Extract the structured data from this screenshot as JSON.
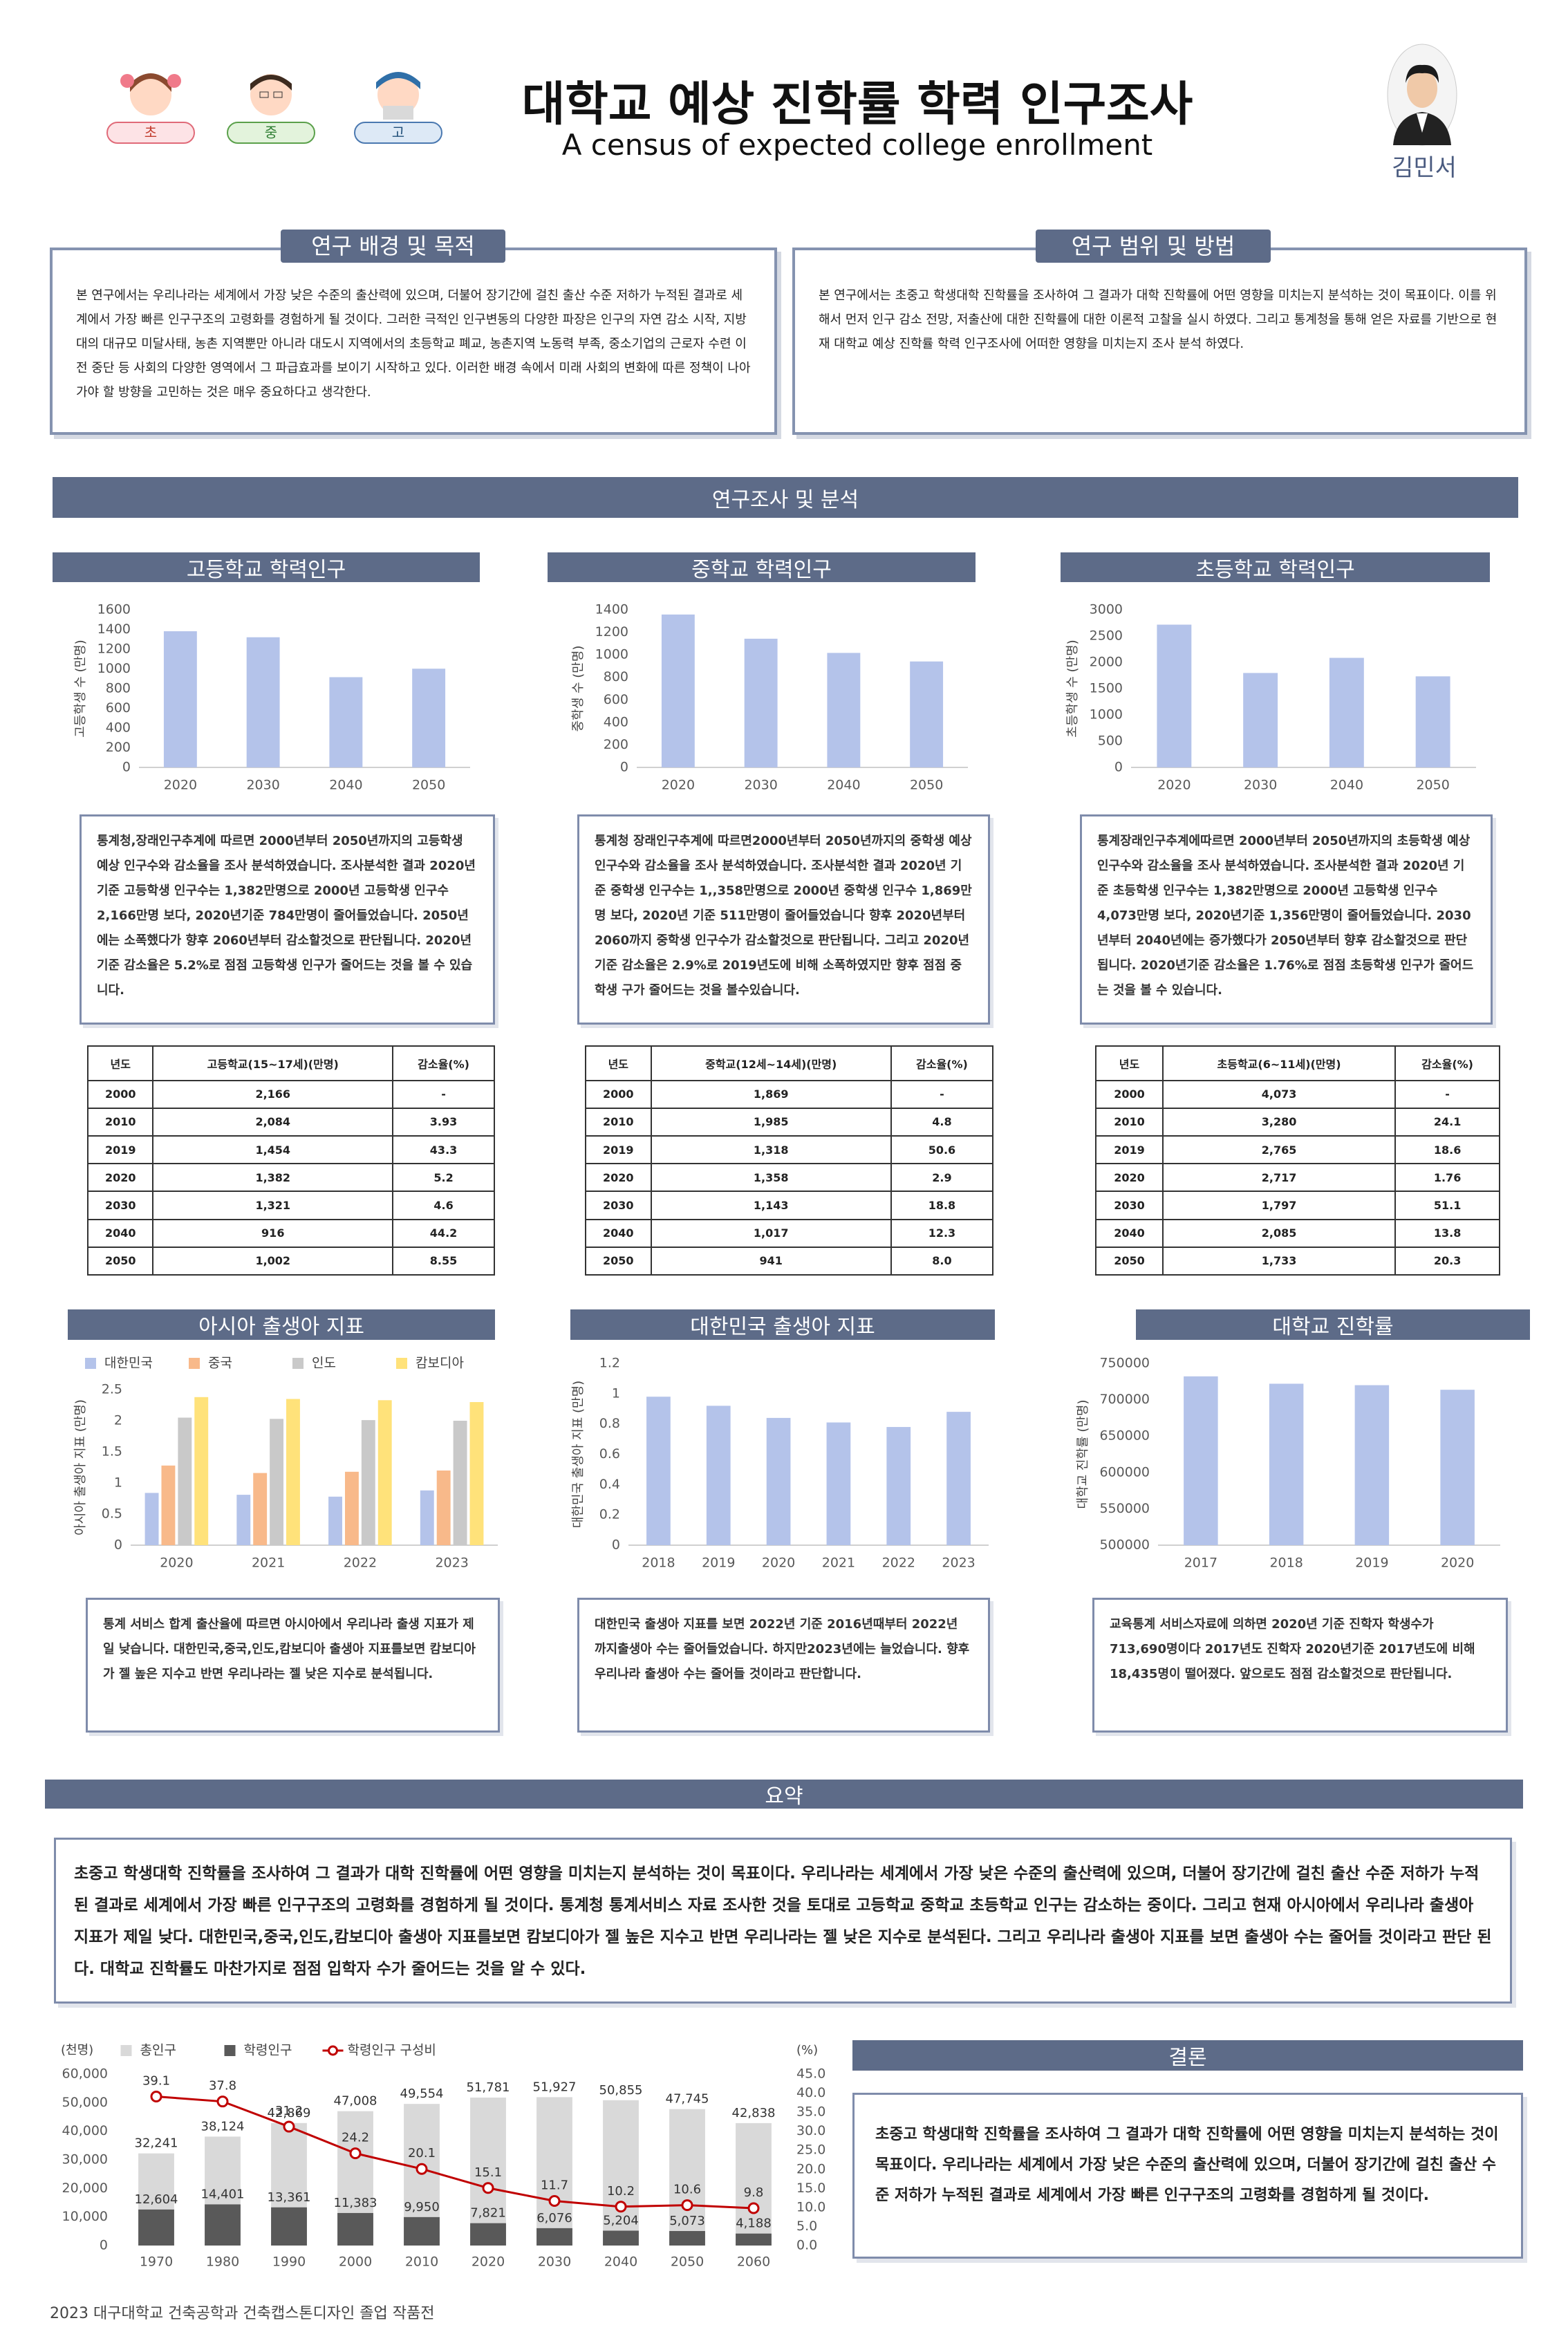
{
  "header": {
    "title": "대학교 예상 진학률 학력 인구조사",
    "subtitle": "A census of expected college enrollment",
    "author": "김민서",
    "icons": [
      "초",
      "중",
      "고"
    ]
  },
  "intro": [
    {
      "heading": "연구 배경 및 목적",
      "text": "본 연구에서는 우리나라는 세계에서 가장 낮은 수준의 출산력에 있으며, 더불어 장기간에 걸친 출산 수준 저하가 누적된 결과로 세계에서 가장 빠른 인구구조의 고령화를 경험하게 될 것이다. 그러한 극적인 인구변동의 다양한 파장은 인구의 자연 감소 시작, 지방대의 대규모 미달사태, 농촌 지역뿐만 아니라 대도시 지역에서의 초등학교 폐교, 농촌지역 노동력 부족, 중소기업의 근로자 수련 이전 중단 등 사회의 다양한 영역에서 그 파급효과를 보이기 시작하고 있다. 이러한 배경 속에서 미래 사회의 변화에 따른 정책이 나아가야 할 방향을 고민하는 것은 매우 중요하다고 생각한다."
    },
    {
      "heading": "연구 범위 및 방법",
      "text": "본 연구에서는 초중고 학생대학 진학률을 조사하여 그 결과가 대학 진학률에 어떤 영향을 미치는지 분석하는 것이 목표이다. 이를 위해서 먼저 인구 감소 전망, 저출산에 대한 진학률에 대한 이론적 고찰을 실시 하였다. 그리고 통계청을 통해 얻은 자료를 기반으로 현재 대학교 예상 진학률 학력 인구조사에 어떠한 영향을 미치는지 조사 분석 하였다."
    }
  ],
  "analysis_banner": "연구조사 및 분석",
  "panels": [
    {
      "heading": "고등학교 학력인구",
      "text": "통계청,장래인구추계에 따르면 2000년부터 2050년까지의 고등학생 예상 인구수와 감소율을 조사 분석하였습니다. 조사분석한 결과 2020년 기준 고등학생 인구수는 1,382만명으로 2000년 고등학생 인구수 2,166만명 보다, 2020년기준 784만명이 줄어들었습니다. 2050년에는 소폭했다가 향후 2060년부터 감소할것으로 판단됩니다. 2020년기준 감소율은 5.2%로 점점 고등학생 인구가 줄어드는 것을 볼 수 있습니다.",
      "table": {
        "header": [
          "년도",
          "고등학교(15~17세)(만명)",
          "감소율(%)"
        ],
        "rows": [
          [
            "2000",
            "2,166",
            "-"
          ],
          [
            "2010",
            "2,084",
            "3.93"
          ],
          [
            "2019",
            "1,454",
            "43.3"
          ],
          [
            "2020",
            "1,382",
            "5.2"
          ],
          [
            "2030",
            "1,321",
            "4.6"
          ],
          [
            "2040",
            "916",
            "44.2"
          ],
          [
            "2050",
            "1,002",
            "8.55"
          ]
        ]
      }
    },
    {
      "heading": "중학교 학력인구",
      "text": "통계청 장래인구추계에 따르면2000년부터 2050년까지의 중학생 예상 인구수와 감소율을 조사 분석하였습니다. 조사분석한 결과 2020년 기준 중학생 인구수는 1,,358만명으로 2000년 중학생 인구수 1,869만명 보다, 2020년 기준 511만명이 줄어들었습니다 향후 2020년부터 2060까지 중학생 인구수가 감소할것으로 판단됩니다. 그리고 2020년기준 감소율은 2.9%로 2019년도에 비해 소폭하였지만 향후 점점 중학생 구가 줄어드는 것을 볼수있습니다.",
      "table": {
        "header": [
          "년도",
          "중학교(12세~14세)(만명)",
          "감소율(%)"
        ],
        "rows": [
          [
            "2000",
            "1,869",
            "-"
          ],
          [
            "2010",
            "1,985",
            "4.8"
          ],
          [
            "2019",
            "1,318",
            "50.6"
          ],
          [
            "2020",
            "1,358",
            "2.9"
          ],
          [
            "2030",
            "1,143",
            "18.8"
          ],
          [
            "2040",
            "1,017",
            "12.3"
          ],
          [
            "2050",
            "941",
            "8.0"
          ]
        ]
      }
    },
    {
      "heading": "초등학교 학력인구",
      "text": "통계장래인구추계에따르면 2000년부터 2050년까지의 초등학생 예상 인구수와 감소율을 조사 분석하였습니다. 조사분석한 결과 2020년 기준 초등학생 인구수는 1,382만명으로 2000년 고등학생 인구수 4,073만명 보다, 2020년기준 1,356만명이 줄어들었습니다. 2030년부터 2040년에는 증가했다가 2050년부터 향후 감소할것으로 판단됩니다. 2020년기준 감소율은 1.76%로 점점 초등학생 인구가 줄어드는 것을 볼 수 있습니다.",
      "table": {
        "header": [
          "년도",
          "초등학교(6~11세)(만명)",
          "감소율(%)"
        ],
        "rows": [
          [
            "2000",
            "4,073",
            "-"
          ],
          [
            "2010",
            "3,280",
            "24.1"
          ],
          [
            "2019",
            "2,765",
            "18.6"
          ],
          [
            "2020",
            "2,717",
            "1.76"
          ],
          [
            "2030",
            "1,797",
            "51.1"
          ],
          [
            "2040",
            "2,085",
            "13.8"
          ],
          [
            "2050",
            "1,733",
            "20.3"
          ]
        ]
      }
    },
    {
      "heading": "아시아 출생아 지표",
      "text": "통계 서비스 합계 출산율에 따르면 아시아에서 우리나라 출생 지표가 제일 낮습니다. 대한민국,중국,인도,캄보디아 출생아 지표를보면 캄보디아가 젤 높은 지수고 반면 우리나라는 젤 낮은 지수로 분석됩니다."
    },
    {
      "heading": "대한민국 출생아 지표",
      "text": "대한민국 출생아 지표를 보면 2022년 기준 2016년때부터 2022년 까지출생아 수는 줄어들었습니다. 하지만2023년에는 늘었습니다. 향후 우리나라 출생아 수는 줄어들 것이라고 판단합니다."
    },
    {
      "heading": "대학교 진학률",
      "text": "교육통계 서비스자료에 의하면 2020년 기준 진학자 학생수가 713,690명이다 2017년도 진학자 2020년기준 2017년도에 비해 18,435명이 떨어졌다. 앞으로도 점점 감소할것으로 판단됩니다."
    }
  ],
  "summary": {
    "heading": "요약",
    "text": "초중고 학생대학 진학률을 조사하여 그 결과가 대학 진학률에 어떤 영향을 미치는지 분석하는 것이 목표이다. 우리나라는 세계에서 가장 낮은 수준의 출산력에 있으며, 더불어 장기간에 걸친 출산 수준 저하가 누적된 결과로 세계에서 가장 빠른 인구구조의 고령화를 경험하게 될 것이다. 통계청 통계서비스 자료 조사한 것을 토대로 고등학교 중학교 초등학교 인구는 감소하는 중이다. 그리고 현재 아시아에서 우리나라 출생아 지표가 제일 낮다. 대한민국,중국,인도,캄보디아 출생아 지표를보면 캄보디아가 젤 높은 지수고 반면 우리나라는 젤 낮은 지수로 분석된다. 그리고 우리나라 출생아 지표를 보면 출생아 수는 줄어들 것이라고 판단 된다. 대학교 진학률도 마찬가지로 점점 입학자 수가 줄어드는 것을 알 수 있다."
  },
  "conclusion": {
    "heading": "결론",
    "text": "초중고 학생대학 진학률을 조사하여 그 결과가 대학 진학률에 어떤 영향을 미치는지 분석하는 것이 목표이다. 우리나라는 세계에서 가장 낮은 수준의 출산력에 있으며, 더불어 장기간에 걸친 출산 수준 저하가 누적된 결과로 세계에서 가장 빠른 인구구조의 고령화를 경험하게 될 것이다."
  },
  "footer": "2023 대구대학교 건축공학과 건축캡스톤디자인 졸업 작품전",
  "chart_data": [
    {
      "type": "bar",
      "y_label": "고등학생 수 (만명)",
      "categories": [
        "2020",
        "2030",
        "2040",
        "2050"
      ],
      "values": [
        1382,
        1321,
        916,
        1002
      ],
      "color": "#b4c3ea",
      "ylim": [
        0,
        1600
      ],
      "yticks": [
        0,
        200,
        400,
        600,
        800,
        1000,
        1200,
        1400,
        1600
      ]
    },
    {
      "type": "bar",
      "y_label": "중학생 수 (만명)",
      "categories": [
        "2020",
        "2030",
        "2040",
        "2050"
      ],
      "values": [
        1358,
        1143,
        1017,
        941
      ],
      "color": "#b4c3ea",
      "ylim": [
        0,
        1400
      ],
      "yticks": [
        0,
        200,
        400,
        600,
        800,
        1000,
        1200,
        1400
      ]
    },
    {
      "type": "bar",
      "y_label": "초등학생 수 (만명)",
      "categories": [
        "2020",
        "2030",
        "2040",
        "2050"
      ],
      "values": [
        2717,
        1797,
        2085,
        1733
      ],
      "color": "#b4c3ea",
      "ylim": [
        0,
        3000
      ],
      "yticks": [
        0,
        500,
        1000,
        1500,
        2000,
        2500,
        3000
      ]
    },
    {
      "type": "bar",
      "y_label": "아시아 출생아 지표 (만명)",
      "categories": [
        "2020",
        "2021",
        "2022",
        "2023"
      ],
      "series": [
        {
          "name": "대한민국",
          "color": "#b4c3ea",
          "values": [
            0.84,
            0.81,
            0.78,
            0.88
          ]
        },
        {
          "name": "중국",
          "color": "#f8b98a",
          "values": [
            1.28,
            1.16,
            1.18,
            1.2
          ]
        },
        {
          "name": "인도",
          "color": "#c9c9c9",
          "values": [
            2.05,
            2.03,
            2.01,
            2.0
          ]
        },
        {
          "name": "캄보디아",
          "color": "#ffe27a",
          "values": [
            2.38,
            2.35,
            2.33,
            2.3
          ]
        }
      ],
      "ylim": [
        0,
        2.5
      ],
      "yticks": [
        0,
        0.5,
        1,
        1.5,
        2,
        2.5
      ],
      "legend": "top"
    },
    {
      "type": "bar",
      "y_label": "대한민국 출생아 지표 (만명)",
      "categories": [
        "2018",
        "2019",
        "2020",
        "2021",
        "2022",
        "2023"
      ],
      "values": [
        0.98,
        0.92,
        0.84,
        0.81,
        0.78,
        0.88
      ],
      "color": "#b4c3ea",
      "ylim": [
        0,
        1.2
      ],
      "yticks": [
        0,
        0.2,
        0.4,
        0.6,
        0.8,
        1,
        1.2
      ]
    },
    {
      "type": "bar",
      "y_label": "대학교 진학률 (만명)",
      "categories": [
        "2017",
        "2018",
        "2019",
        "2020"
      ],
      "values": [
        732125,
        722000,
        720000,
        713690
      ],
      "color": "#b4c3ea",
      "ylim": [
        500000,
        750000
      ],
      "yticks": [
        500000,
        550000,
        600000,
        650000,
        700000,
        750000
      ]
    },
    {
      "type": "combo",
      "y_label": "(천명)",
      "y2_label": "(%)",
      "categories": [
        "1970",
        "1980",
        "1990",
        "2000",
        "2010",
        "2020",
        "2030",
        "2040",
        "2050",
        "2060"
      ],
      "series": [
        {
          "name": "총인구",
          "color": "#d9d9d9",
          "values": [
            32241,
            38124,
            42869,
            47008,
            49554,
            51781,
            51927,
            50855,
            47745,
            42838
          ],
          "value_labels": [
            "32,241",
            "38,124",
            "42,869",
            "47,008",
            "49,554",
            "51,781",
            "51,927",
            "50,855",
            "47,745",
            "42,838"
          ]
        },
        {
          "name": "학령인구",
          "color": "#595959",
          "values": [
            12604,
            14401,
            13361,
            11383,
            9950,
            7821,
            6076,
            5204,
            5073,
            4188
          ],
          "value_labels": [
            "12,604",
            "14,401",
            "13,361",
            "11,383",
            "9,950",
            "7,821",
            "6,076",
            "5,204",
            "5,073",
            "4,188"
          ]
        },
        {
          "name": "학령인구 구성비",
          "color": "#c00000",
          "axis": "y2",
          "values": [
            39.1,
            37.8,
            31.2,
            24.2,
            20.1,
            15.1,
            11.7,
            10.2,
            10.6,
            9.8
          ]
        }
      ],
      "ylim": [
        0,
        60000
      ],
      "yticks": [
        0,
        {
          "value": 10000,
          "label": "10,000"
        },
        {
          "value": 20000,
          "label": "20,000"
        },
        {
          "value": 30000,
          "label": "30,000"
        },
        {
          "value": 40000,
          "label": "40,000"
        },
        {
          "value": 50000,
          "label": "50,000"
        },
        {
          "value": 60000,
          "label": "60,000"
        }
      ],
      "y2lim": [
        0,
        45
      ],
      "y2ticks": [
        {
          "value": 0,
          "label": "0.0"
        },
        {
          "value": 5,
          "label": "5.0"
        },
        {
          "value": 10,
          "label": "10.0"
        },
        {
          "value": 15,
          "label": "15.0"
        },
        {
          "value": 20,
          "label": "20.0"
        },
        {
          "value": 25,
          "label": "25.0"
        },
        {
          "value": 30,
          "label": "30.0"
        },
        {
          "value": 35,
          "label": "35.0"
        },
        {
          "value": 40,
          "label": "40.0"
        },
        {
          "value": 45,
          "label": "45.0"
        }
      ],
      "legend": "top"
    }
  ]
}
